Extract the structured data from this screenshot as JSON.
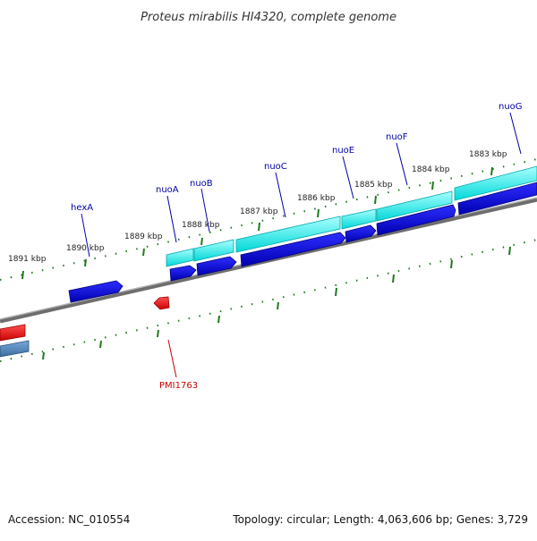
{
  "title": "Proteus mirabilis HI4320, complete genome",
  "footer": {
    "accession": "Accession: NC_010554",
    "summary": "Topology: circular; Length: 4,063,606 bp; Genes: 3,729"
  },
  "colors": {
    "tick": "#1f7a1f",
    "backbone": "#808080",
    "gene_forward": "#0000cc",
    "gene_forward_light": "#00dddd",
    "gene_reverse": "#ee0000",
    "gene_steel": "#4682b4",
    "label_blue": "#0000aa",
    "label_red": "#cc0000"
  },
  "kbp_labels": [
    "1891 kbp",
    "1890 kbp",
    "1889 kbp",
    "1888 kbp",
    "1887 kbp",
    "1886 kbp",
    "1885 kbp",
    "1884 kbp",
    "1883 kbp"
  ],
  "gene_labels": [
    "hexA",
    "nuoA",
    "nuoB",
    "nuoC",
    "nuoE",
    "nuoF",
    "nuoG",
    "PMI1763"
  ]
}
